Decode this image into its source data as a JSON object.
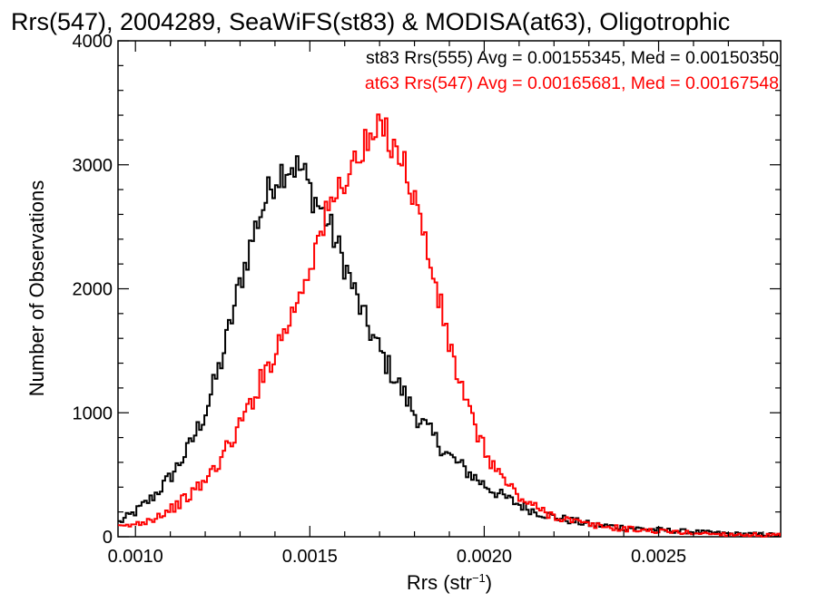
{
  "chart_data": {
    "type": "line",
    "style": "step-histogram",
    "title": "Rrs(547), 2004289, SeaWiFS(st83) & MODISA(at63), Oligotrophic",
    "xlabel": "Rrs (str",
    "xlabel_sup": "−1",
    "xlabel_close": ")",
    "ylabel": "Number of Observations",
    "xlim": [
      0.00095,
      0.00285
    ],
    "ylim": [
      0,
      4000
    ],
    "x_ticks": [
      0.001,
      0.0015,
      0.002,
      0.0025
    ],
    "x_tick_labels": [
      "0.0010",
      "0.0015",
      "0.0020",
      "0.0025"
    ],
    "y_ticks": [
      0,
      1000,
      2000,
      3000,
      4000
    ],
    "y_tick_labels": [
      "0",
      "1000",
      "2000",
      "3000",
      "4000"
    ],
    "grid": false,
    "legend_placement": "top-right",
    "colors": {
      "st83": "#000000",
      "at63": "#ff0000"
    },
    "series": [
      {
        "name": "st83 Rrs(555) Avg = 0.00155345, Med = 0.00150350",
        "color": "#000000",
        "x": [
          0.00095,
          0.001,
          0.00105,
          0.0011,
          0.00115,
          0.0012,
          0.00125,
          0.0013,
          0.00135,
          0.0014,
          0.00143,
          0.00145,
          0.00148,
          0.0015,
          0.00155,
          0.0016,
          0.00165,
          0.0017,
          0.00175,
          0.0018,
          0.00185,
          0.0019,
          0.00195,
          0.002,
          0.00205,
          0.0021,
          0.00215,
          0.0022,
          0.00225,
          0.0023,
          0.0024,
          0.0025,
          0.0026,
          0.0027,
          0.00285
        ],
        "y": [
          110,
          200,
          320,
          480,
          700,
          1000,
          1450,
          2050,
          2550,
          2900,
          2980,
          3000,
          2950,
          2800,
          2550,
          2200,
          1800,
          1500,
          1250,
          1000,
          820,
          650,
          530,
          420,
          330,
          260,
          200,
          160,
          130,
          100,
          75,
          55,
          40,
          25,
          15
        ]
      },
      {
        "name": "at63 Rrs(547) Avg = 0.00165681, Med = 0.00167548",
        "color": "#ff0000",
        "x": [
          0.00095,
          0.001,
          0.00105,
          0.0011,
          0.00115,
          0.0012,
          0.00125,
          0.0013,
          0.00135,
          0.0014,
          0.00145,
          0.0015,
          0.00155,
          0.0016,
          0.00165,
          0.00168,
          0.00171,
          0.00175,
          0.0018,
          0.00185,
          0.0019,
          0.00195,
          0.002,
          0.00205,
          0.0021,
          0.00215,
          0.0022,
          0.00225,
          0.0023,
          0.0024,
          0.0025,
          0.0026,
          0.0027,
          0.00285
        ],
        "y": [
          70,
          100,
          150,
          220,
          320,
          450,
          650,
          900,
          1200,
          1500,
          1800,
          2200,
          2600,
          2900,
          3100,
          3200,
          3300,
          3150,
          2750,
          2150,
          1550,
          1050,
          700,
          480,
          320,
          230,
          170,
          130,
          95,
          65,
          45,
          30,
          20,
          10
        ]
      }
    ]
  }
}
